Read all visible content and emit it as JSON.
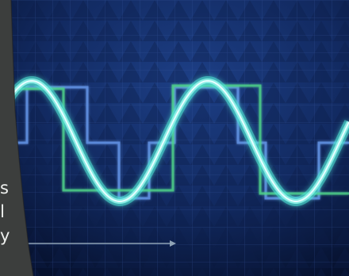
{
  "scene": {
    "description_colors": {
      "background_dark": "#06112e",
      "background_light": "#1d3f86",
      "grid": "#3b5da8",
      "sine_core": "#d9fbff",
      "sine_glow": "#4fe0d2",
      "square_wave_blue": "#5f8fe0",
      "square_wave_green": "#4fd38a",
      "side_panel": "#3c3e3d",
      "arrow": "#8fa3b6"
    },
    "side_panel": {
      "text_fragments": [
        "s",
        "l",
        "y"
      ]
    }
  }
}
